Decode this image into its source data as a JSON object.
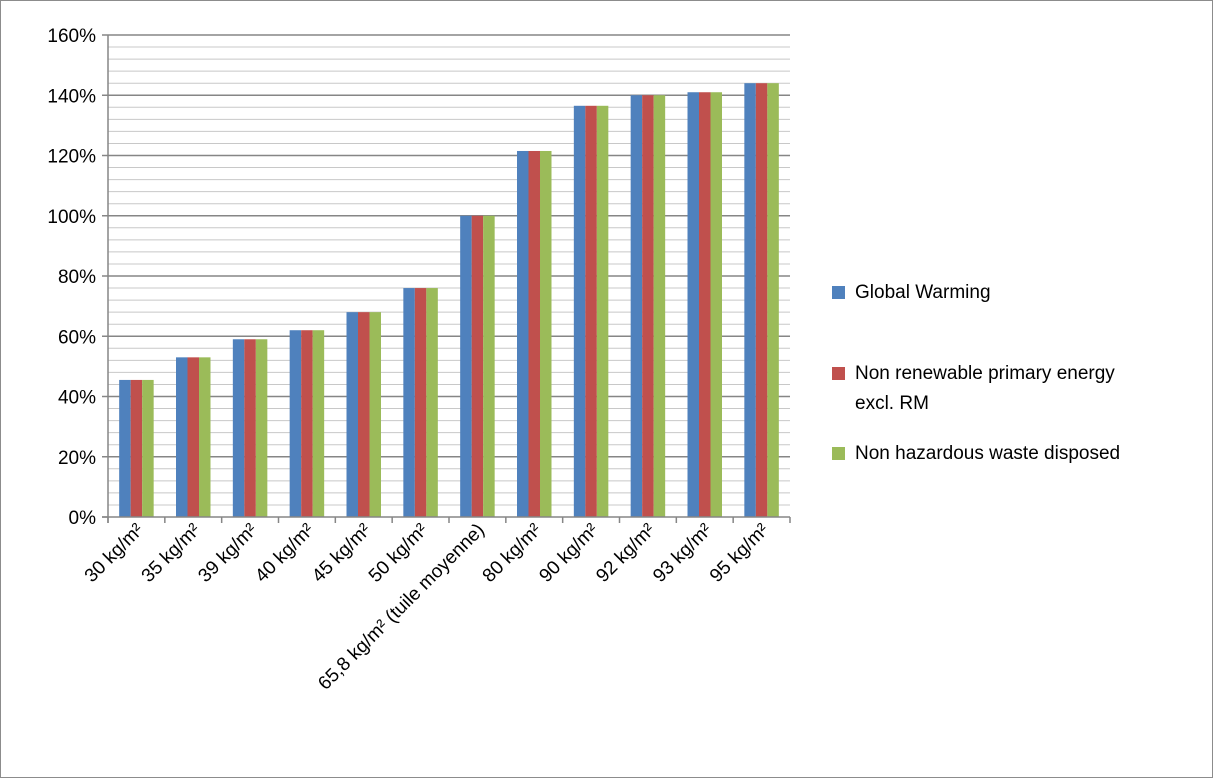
{
  "chart_data": {
    "type": "bar",
    "title": "",
    "xlabel": "",
    "ylabel": "",
    "ylim": [
      0,
      1.6
    ],
    "y_ticks": [
      "0%",
      "20%",
      "40%",
      "60%",
      "80%",
      "100%",
      "120%",
      "140%",
      "160%"
    ],
    "grid": true,
    "legend_position": "right",
    "categories": [
      "30 kg/m²",
      "35 kg/m²",
      "39 kg/m²",
      "40 kg/m²",
      "45 kg/m²",
      "50 kg/m²",
      "65,8 kg/m² (tuile moyenne)",
      "80 kg/m²",
      "90 kg/m²",
      "92 kg/m²",
      "93 kg/m²",
      "95 kg/m²"
    ],
    "series": [
      {
        "name": "Global Warming",
        "color": "#4f81bd",
        "values": [
          0.455,
          0.53,
          0.59,
          0.62,
          0.68,
          0.76,
          1.0,
          1.215,
          1.365,
          1.4,
          1.41,
          1.44
        ]
      },
      {
        "name": "Non renewable primary energy excl. RM",
        "color": "#c0504d",
        "values": [
          0.455,
          0.53,
          0.59,
          0.62,
          0.68,
          0.76,
          1.0,
          1.215,
          1.365,
          1.4,
          1.41,
          1.44
        ]
      },
      {
        "name": "Non hazardous waste disposed",
        "color": "#9bbb59",
        "values": [
          0.455,
          0.53,
          0.59,
          0.62,
          0.68,
          0.76,
          1.0,
          1.215,
          1.365,
          1.4,
          1.41,
          1.44
        ]
      }
    ],
    "legend_lines": [
      [
        "Global Warming"
      ],
      [
        "Non renewable primary energy",
        "excl. RM"
      ],
      [
        "Non hazardous waste disposed"
      ]
    ]
  }
}
